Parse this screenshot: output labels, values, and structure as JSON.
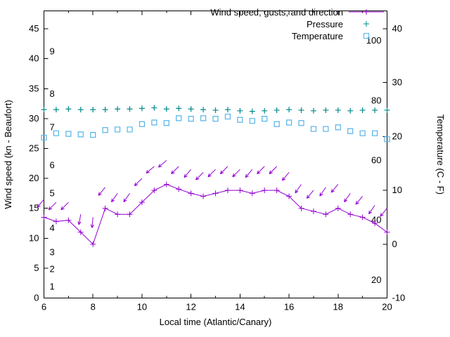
{
  "chart_data": {
    "type": "line",
    "title": "",
    "xlabel": "Local time (Atlantic/Canary)",
    "ylabel_left": "Wind speed (kn - Beaufort)",
    "ylabel_right": "Temperature (C - F)",
    "grid": false,
    "legend_position": "top-right-inside",
    "frame_color": "#000000",
    "axes": {
      "x": {
        "range": [
          6,
          20
        ],
        "ticks": [
          6,
          8,
          10,
          12,
          14,
          16,
          18,
          20
        ],
        "minor_ticks": [
          7,
          9,
          11,
          13,
          15,
          17,
          19
        ]
      },
      "y_left": {
        "range": [
          0,
          48
        ],
        "ticks": [
          0,
          5,
          10,
          15,
          20,
          25,
          30,
          35,
          40,
          45
        ]
      },
      "y_right": {
        "range": [
          -10,
          43.33
        ],
        "ticks": [
          -10,
          0,
          10,
          20,
          30,
          40
        ]
      }
    },
    "beaufort_scale_labels": [
      {
        "label": "1",
        "kn": 1.9
      },
      {
        "label": "2",
        "kn": 4.8
      },
      {
        "label": "3",
        "kn": 7.6
      },
      {
        "label": "4",
        "kn": 11.7
      },
      {
        "label": "5",
        "kn": 17.5
      },
      {
        "label": "6",
        "kn": 22.2
      },
      {
        "label": "7",
        "kn": 28.5
      },
      {
        "label": "8",
        "kn": 34.1
      },
      {
        "label": "9",
        "kn": 41.2
      }
    ],
    "fahrenheit_scale_labels": [
      {
        "label": "20",
        "f": 20
      },
      {
        "label": "40",
        "f": 40
      },
      {
        "label": "60",
        "f": 60
      },
      {
        "label": "80",
        "f": 80
      },
      {
        "label": "100",
        "f": 100
      }
    ],
    "x": [
      6,
      6.5,
      7,
      7.5,
      8,
      8.5,
      9,
      9.5,
      10,
      10.5,
      11,
      11.5,
      12,
      12.5,
      13,
      13.5,
      14,
      14.5,
      15,
      15.5,
      16,
      16.5,
      17,
      17.5,
      18,
      18.5,
      19,
      19.5,
      20
    ],
    "series": [
      {
        "name": "Wind speed, gusts, and direction",
        "type": "line+points+vectors",
        "color": "#9400d3",
        "axis": "left",
        "values": [
          13.5,
          12.8,
          13,
          11,
          9,
          15,
          14,
          14,
          16,
          18,
          19,
          18.2,
          17.5,
          17,
          17.5,
          18,
          18,
          17.5,
          18,
          18,
          17,
          15,
          14.5,
          14,
          15,
          14,
          13.5,
          12.5,
          11
        ],
        "gust_values": [
          16.5,
          16,
          16,
          14,
          13.5,
          18.5,
          17.5,
          17.5,
          20,
          22,
          23,
          22,
          21.5,
          21,
          21.5,
          22,
          21.5,
          21.5,
          22,
          22,
          21,
          19,
          18,
          18.5,
          19,
          17.5,
          17,
          15.5,
          15
        ],
        "direction_deg": [
          220,
          225,
          225,
          190,
          185,
          220,
          215,
          215,
          225,
          230,
          230,
          225,
          220,
          225,
          225,
          225,
          225,
          220,
          225,
          225,
          220,
          215,
          220,
          215,
          220,
          215,
          220,
          215,
          220
        ]
      },
      {
        "name": "Pressure",
        "type": "points-plus",
        "color": "#008b8b",
        "axis": "left",
        "values": [
          31.5,
          31.5,
          31.6,
          31.5,
          31.5,
          31.5,
          31.6,
          31.6,
          31.7,
          31.8,
          31.6,
          31.7,
          31.6,
          31.5,
          31.4,
          31.5,
          31.3,
          31.2,
          31.3,
          31.4,
          31.5,
          31.4,
          31.3,
          31.4,
          31.4,
          31.3,
          31.4,
          31.4,
          31.4
        ]
      },
      {
        "name": "Temperature",
        "type": "points-square",
        "axis": "right",
        "color": "#56b4e9",
        "values": [
          19.8,
          20.6,
          20.5,
          20.4,
          20.3,
          21.2,
          21.3,
          21.3,
          22.3,
          22.6,
          22.5,
          23.4,
          23.3,
          23.4,
          23.3,
          23.7,
          23.1,
          22.9,
          23.3,
          22.3,
          22.6,
          22.5,
          21.4,
          21.4,
          21.7,
          21.0,
          20.6,
          20.6,
          19.5
        ]
      }
    ]
  }
}
